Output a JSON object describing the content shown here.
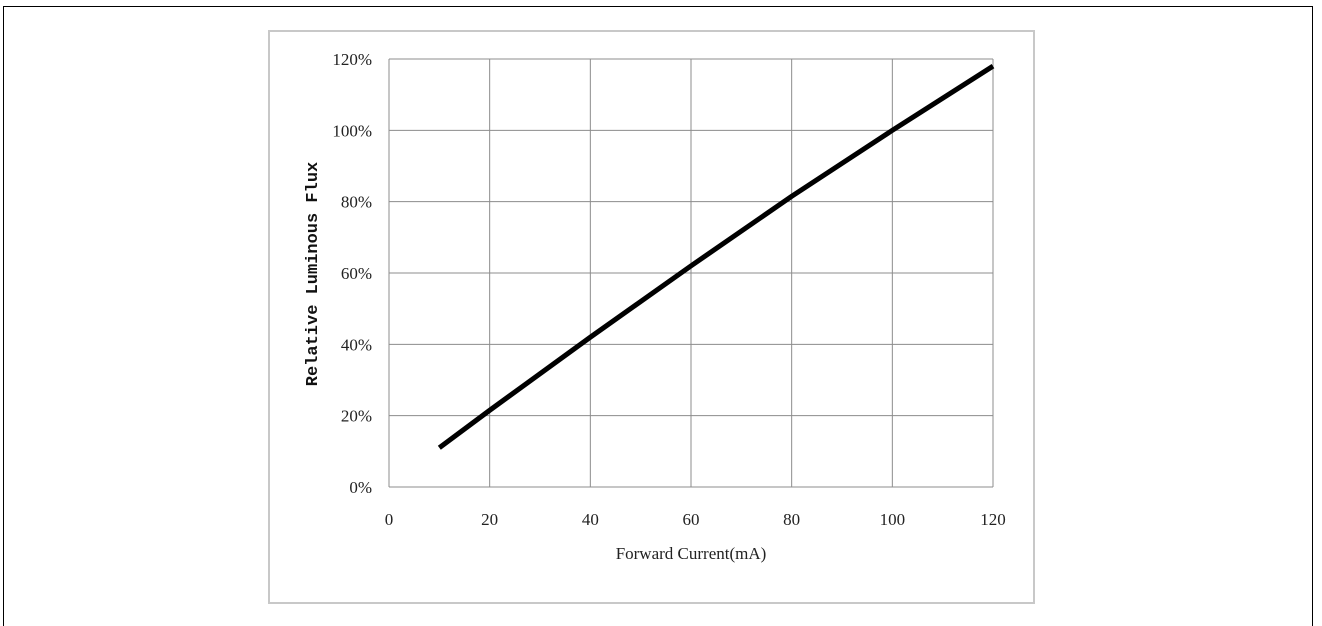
{
  "chart_data": {
    "type": "line",
    "title": "",
    "xlabel": "Forward Current(mA)",
    "ylabel": "Relative Luminous Flux",
    "xlim": [
      0,
      120
    ],
    "ylim": [
      0,
      120
    ],
    "x_ticks": [
      0,
      20,
      40,
      60,
      80,
      100,
      120
    ],
    "x_tick_labels": [
      "0",
      "20",
      "40",
      "60",
      "80",
      "100",
      "120"
    ],
    "y_ticks": [
      0,
      20,
      40,
      60,
      80,
      100,
      120
    ],
    "y_tick_labels": [
      "0%",
      "20%",
      "40%",
      "60%",
      "80%",
      "100%",
      "120%"
    ],
    "grid": true,
    "legend": "none",
    "series": [
      {
        "color": "#000000",
        "x": [
          10,
          20,
          40,
          60,
          80,
          100,
          120
        ],
        "y": [
          11,
          21.5,
          42,
          62,
          81.5,
          100,
          118
        ]
      }
    ]
  },
  "colors": {
    "grid": "#8c8c8c",
    "axis": "#8c8c8c",
    "line": "#000000",
    "chart_border": "#c8c8c8"
  }
}
